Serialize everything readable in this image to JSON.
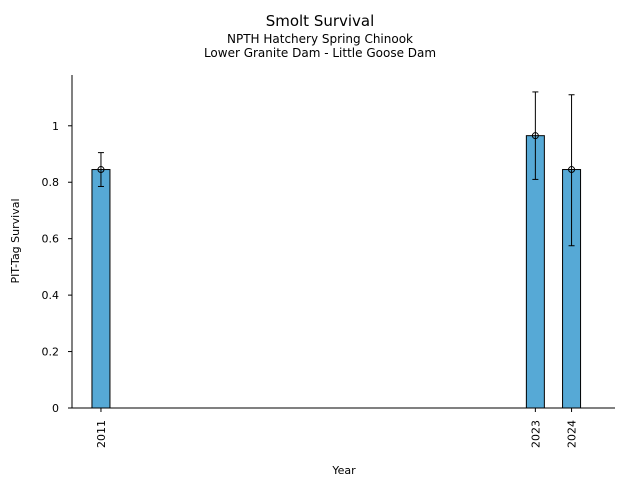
{
  "chart_data": {
    "type": "bar",
    "title": "Smolt Survival",
    "subtitle_lines": [
      "NPTH Hatchery Spring Chinook",
      "Lower Granite Dam - Little Goose Dam"
    ],
    "xlabel": "Year",
    "ylabel": "PIT-Tag Survival",
    "x": [
      2011,
      2023,
      2024
    ],
    "values": [
      0.845,
      0.965,
      0.845
    ],
    "error_low": [
      0.785,
      0.81,
      0.575
    ],
    "error_high": [
      0.905,
      1.12,
      1.11
    ],
    "x_tick_labels": [
      "2011",
      "2023",
      "2024"
    ],
    "ylim": [
      0,
      1.18
    ],
    "y_ticks": [
      0,
      0.2,
      0.4,
      0.6,
      0.8,
      1
    ],
    "y_tick_labels": [
      "0",
      "0.2",
      "0.4",
      "0.6",
      "0.8",
      "1"
    ],
    "bar_color": "#56A9D6",
    "grid": false,
    "legend": "none"
  }
}
